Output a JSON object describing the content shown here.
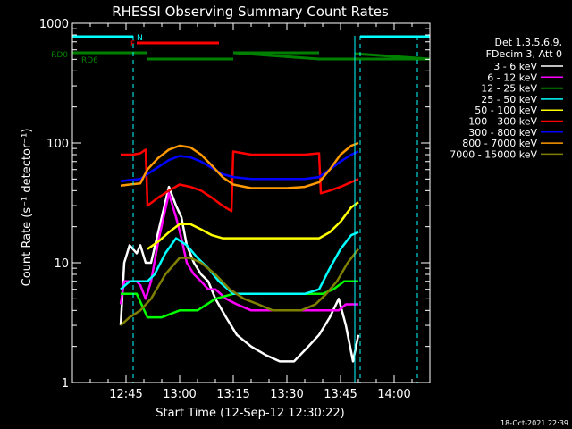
{
  "chart_data": {
    "type": "line",
    "title": "RHESSI Observing Summary Count Rates",
    "xlabel": "Start Time (12-Sep-12 12:30:22)",
    "ylabel": "Count Rate (s⁻¹ detector⁻¹)",
    "yscale": "log",
    "ylim": [
      1,
      1000
    ],
    "xlim_minutes": [
      0,
      100
    ],
    "x_ticks": [
      {
        "m": 15,
        "label": "12:45"
      },
      {
        "m": 30,
        "label": "13:00"
      },
      {
        "m": 45,
        "label": "13:15"
      },
      {
        "m": 60,
        "label": "13:30"
      },
      {
        "m": 75,
        "label": "13:45"
      },
      {
        "m": 90,
        "label": "14:00"
      }
    ],
    "y_ticks": [
      {
        "v": 1,
        "label": "1"
      },
      {
        "v": 10,
        "label": "10"
      },
      {
        "v": 100,
        "label": "100"
      },
      {
        "v": 1000,
        "label": "1000"
      }
    ],
    "legend_header": [
      "Det 1,3,5,6,9,",
      "FDecim 3, Att 0"
    ],
    "legend_placement": "right",
    "timestamp": "18-Oct-2021 22:39",
    "status_bars": [
      {
        "label": "N",
        "color": "#00ffff",
        "segments": [
          [
            0,
            17
          ],
          [
            80.5,
            100
          ]
        ]
      },
      {
        "label": "F",
        "color": "#ff0000",
        "segments": [
          [
            18,
            41
          ]
        ]
      },
      {
        "label": "RD0",
        "color": "#008000",
        "segments": [
          [
            0,
            21
          ],
          [
            45,
            69
          ],
          [
            79,
            100
          ]
        ]
      }
    ],
    "extra_label": {
      "text": "RD6",
      "color": "#008000"
    },
    "night_markers_minutes": [
      17,
      80.5,
      96.5
    ],
    "day_markers_minutes": [
      0,
      79
    ],
    "series": [
      {
        "name": "3 - 6 keV",
        "color": "#ffffff",
        "x": [
          13.5,
          14.5,
          16,
          18,
          19,
          20.5,
          22,
          24,
          27,
          29,
          30.5,
          32,
          34,
          36,
          38,
          40,
          43,
          46,
          50,
          54,
          58,
          62,
          66,
          69,
          72,
          74.5,
          76.5,
          78.5,
          80
        ],
        "y": [
          3,
          10,
          14,
          12,
          14,
          10,
          10,
          18,
          43,
          30,
          24,
          14,
          10,
          8,
          7,
          5,
          3.5,
          2.5,
          2,
          1.7,
          1.5,
          1.5,
          2,
          2.5,
          3.5,
          5,
          3,
          1.5,
          2.5
        ]
      },
      {
        "name": "6 - 12 keV",
        "color": "#ff00ff",
        "x": [
          13.5,
          14.5,
          16,
          18,
          19,
          20.5,
          22,
          24,
          27,
          29,
          30.5,
          32,
          34,
          36,
          38,
          40,
          43,
          46,
          50,
          54,
          58,
          62,
          66,
          69,
          72,
          74.5,
          76.5,
          78.5,
          80
        ],
        "y": [
          4.5,
          7,
          7,
          7,
          6.5,
          5,
          7,
          15,
          38,
          24,
          16,
          10,
          8,
          7,
          6,
          6,
          5,
          4.5,
          4,
          4,
          4,
          4,
          4,
          4,
          4,
          4,
          4.5,
          4.5,
          4.5
        ]
      },
      {
        "name": "12 - 25 keV",
        "color": "#00ff00",
        "x": [
          13.5,
          15,
          18,
          21,
          25,
          30,
          35,
          40,
          45,
          50,
          55,
          60,
          65,
          70,
          73,
          76,
          79,
          80
        ],
        "y": [
          5.5,
          5.5,
          5.5,
          3.5,
          3.5,
          4,
          4,
          5,
          5.5,
          5.5,
          5.5,
          5.5,
          5.5,
          5.5,
          6,
          7,
          7,
          7
        ]
      },
      {
        "name": "25 - 50 keV",
        "color": "#00ffff",
        "x": [
          13.5,
          16,
          19,
          21,
          23,
          26,
          29,
          32,
          35,
          38,
          41,
          45,
          50,
          55,
          60,
          65,
          69,
          72,
          75,
          78,
          80
        ],
        "y": [
          6,
          7,
          7,
          7,
          8,
          12,
          16,
          14,
          11,
          9,
          7,
          5.5,
          5.5,
          5.5,
          5.5,
          5.5,
          6,
          9,
          13,
          17,
          18
        ]
      },
      {
        "name": "50 - 100 keV",
        "color": "#ffff00",
        "x": [
          21,
          24,
          27,
          30,
          33,
          36,
          39,
          42,
          45,
          50,
          55,
          60,
          65,
          69,
          72,
          75,
          78,
          80
        ],
        "y": [
          13,
          15,
          18,
          21,
          21,
          19,
          17,
          16,
          16,
          16,
          16,
          16,
          16,
          16,
          18,
          22,
          29,
          32
        ]
      },
      {
        "name": "100 - 300 keV",
        "color": "#ff0000",
        "x": [
          13.5,
          15,
          17,
          19,
          20.5,
          21,
          24,
          27,
          30,
          33,
          36,
          39,
          42,
          44.5,
          45,
          50,
          55,
          60,
          65,
          69,
          69.5,
          72,
          75,
          78,
          80
        ],
        "y": [
          80,
          80,
          80,
          82,
          88,
          30,
          35,
          40,
          45,
          43,
          40,
          35,
          30,
          27,
          85,
          80,
          80,
          80,
          80,
          82,
          38,
          40,
          43,
          47,
          50
        ]
      },
      {
        "name": "300 - 800 keV",
        "color": "#0000ff",
        "x": [
          13.5,
          16,
          19,
          21,
          24,
          27,
          30,
          33,
          36,
          39,
          42,
          45,
          50,
          55,
          60,
          65,
          69,
          72,
          75,
          78,
          80
        ],
        "y": [
          48,
          49,
          50,
          55,
          63,
          72,
          78,
          76,
          70,
          62,
          55,
          52,
          50,
          50,
          50,
          50,
          52,
          60,
          70,
          80,
          85
        ]
      },
      {
        "name": "800 - 7000 keV",
        "color": "#ff9900",
        "x": [
          13.5,
          16,
          19,
          21,
          24,
          27,
          30,
          33,
          36,
          39,
          42,
          45,
          50,
          55,
          60,
          65,
          69,
          72,
          75,
          78,
          80
        ],
        "y": [
          44,
          45,
          46,
          60,
          75,
          88,
          95,
          92,
          80,
          65,
          52,
          45,
          42,
          42,
          42,
          43,
          47,
          60,
          80,
          95,
          100
        ]
      },
      {
        "name": "7000 - 15000 keV",
        "color": "#808000",
        "x": [
          13.5,
          16,
          19,
          22,
          26,
          30,
          33,
          36,
          40,
          44,
          48,
          52,
          56,
          60,
          64,
          68,
          71,
          74,
          77,
          80
        ],
        "y": [
          3,
          3.5,
          4,
          5,
          8,
          11,
          11,
          10,
          8,
          6,
          5,
          4.5,
          4,
          4,
          4,
          4.5,
          5.5,
          7,
          10,
          13
        ]
      }
    ]
  }
}
